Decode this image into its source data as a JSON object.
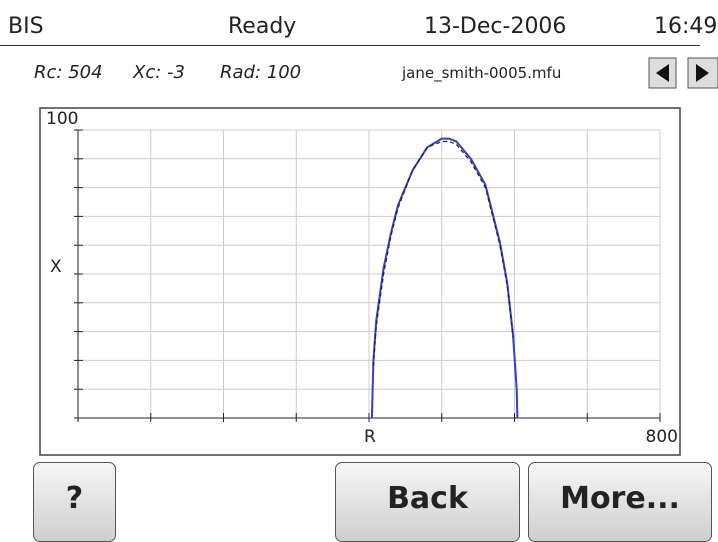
{
  "status_bar": {
    "app": "BIS",
    "state": "Ready",
    "date": "13-Dec-2006",
    "time": "16:49"
  },
  "info": {
    "rc": "Rc: 504",
    "xc": "Xc: -3",
    "rad": "Rad: 100",
    "file": "jane_smith-0005.mfu"
  },
  "chart_data": {
    "type": "line",
    "x_label": "R",
    "y_label": "X",
    "xlim": [
      0,
      800
    ],
    "ylim": [
      0,
      100
    ],
    "xticks": [
      800
    ],
    "yticks": [
      100
    ],
    "xgrid": [
      0,
      100,
      200,
      300,
      400,
      500,
      600,
      700,
      800
    ],
    "ygrid": [
      0,
      10,
      20,
      30,
      40,
      50,
      60,
      70,
      80,
      90,
      100
    ],
    "series": [
      {
        "color": "#3a3ad0",
        "dash": false,
        "x": [
          404,
          406,
          410,
          420,
          430,
          440,
          460,
          480,
          500,
          510,
          520,
          540,
          560,
          580,
          590,
          598,
          603,
          604
        ],
        "values": [
          0,
          20,
          34,
          52,
          64,
          74,
          86,
          94,
          97,
          97,
          96,
          90,
          81,
          61,
          47,
          29,
          10,
          0
        ]
      },
      {
        "color": "#222222",
        "dash": true,
        "x": [
          406,
          410,
          420,
          430,
          440,
          460,
          480,
          500,
          510,
          520,
          540,
          560,
          580,
          590,
          598
        ],
        "values": [
          18,
          32,
          50,
          63,
          73,
          86,
          94,
          96,
          96,
          95,
          89,
          80,
          60,
          46,
          28
        ]
      }
    ]
  },
  "buttons": {
    "help": "?",
    "back": "Back",
    "more": "More..."
  }
}
